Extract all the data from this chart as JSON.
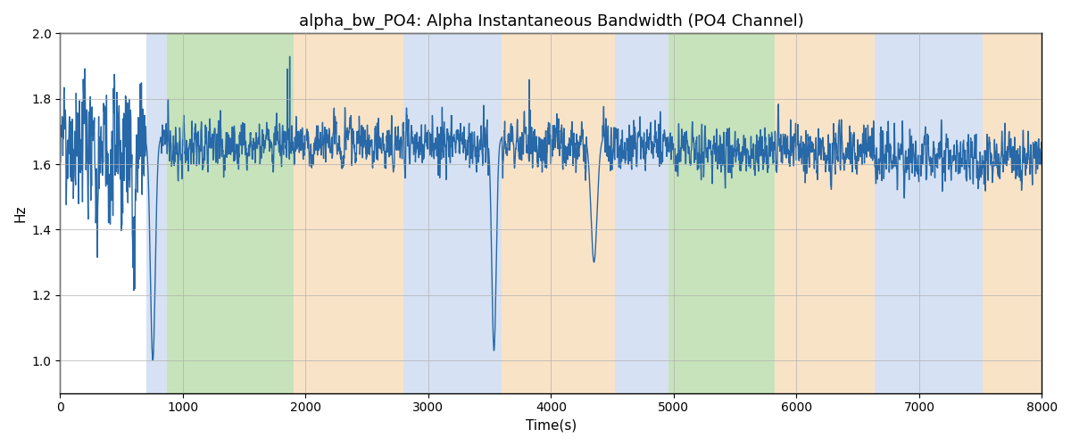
{
  "title": "alpha_bw_PO4: Alpha Instantaneous Bandwidth (PO4 Channel)",
  "xlabel": "Time(s)",
  "ylabel": "Hz",
  "xlim": [
    0,
    8000
  ],
  "ylim": [
    0.9,
    2.0
  ],
  "yticks": [
    1.0,
    1.2,
    1.4,
    1.6,
    1.8,
    2.0
  ],
  "xticks": [
    0,
    1000,
    2000,
    3000,
    4000,
    5000,
    6000,
    7000,
    8000
  ],
  "line_color": "#2768a8",
  "line_width": 1.0,
  "background_color": "#ffffff",
  "grid_color": "#b0b0b0",
  "bands": [
    {
      "xmin": 700,
      "xmax": 870,
      "color": "#aec6e8",
      "alpha": 0.5
    },
    {
      "xmin": 870,
      "xmax": 1900,
      "color": "#90c878",
      "alpha": 0.5
    },
    {
      "xmin": 1900,
      "xmax": 2800,
      "color": "#f5c990",
      "alpha": 0.5
    },
    {
      "xmin": 2800,
      "xmax": 3600,
      "color": "#aec6e8",
      "alpha": 0.5
    },
    {
      "xmin": 3600,
      "xmax": 4520,
      "color": "#f5c990",
      "alpha": 0.5
    },
    {
      "xmin": 4520,
      "xmax": 4960,
      "color": "#aec6e8",
      "alpha": 0.5
    },
    {
      "xmin": 4960,
      "xmax": 5820,
      "color": "#90c878",
      "alpha": 0.5
    },
    {
      "xmin": 5820,
      "xmax": 6640,
      "color": "#f5c990",
      "alpha": 0.5
    },
    {
      "xmin": 6640,
      "xmax": 7520,
      "color": "#aec6e8",
      "alpha": 0.5
    },
    {
      "xmin": 7520,
      "xmax": 8100,
      "color": "#f5c990",
      "alpha": 0.5
    }
  ],
  "seed": 12345,
  "n_points": 4000,
  "base_freq": 1.68,
  "noise_amp": 0.065,
  "slow_amp": 0.04
}
